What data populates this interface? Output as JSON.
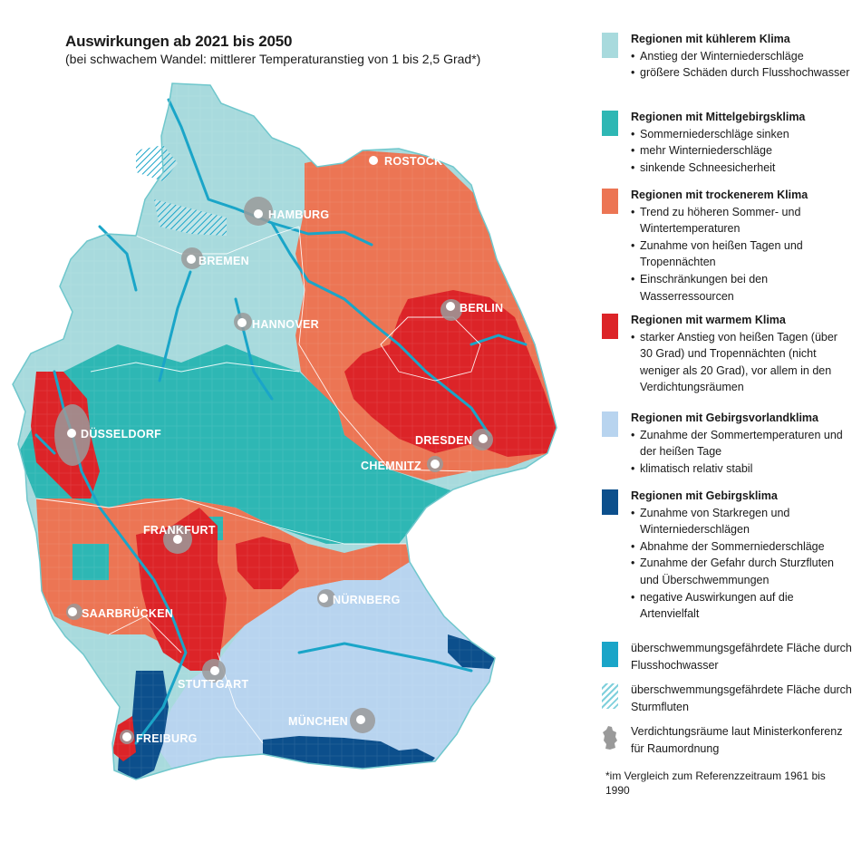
{
  "header": {
    "title": "Auswirkungen ab 2021 bis 2050",
    "subtitle": "(bei schwachem Wandel: mittlerer Temperaturanstieg von 1 bis 2,5 Grad*)"
  },
  "legend": [
    {
      "title": "Regionen mit kühlerem Klima",
      "color": "#a8dadd",
      "bullets": [
        "Anstieg der Winterniederschläge",
        "größere Schäden durch Flusshochwasser"
      ]
    },
    {
      "title": "Regionen mit Mittelgebirgsklima",
      "color": "#2eb7b4",
      "bullets": [
        "Sommerniederschläge sinken",
        "mehr Winterniederschläge",
        "sinkende Schneesicherheit"
      ]
    },
    {
      "title": "Regionen mit trockenerem Klima",
      "color": "#ec7554",
      "bullets": [
        "Trend zu höheren Sommer- und Wintertemperaturen",
        "Zunahme von heißen Tagen und Tropennächten",
        "Einschränkungen bei den Wasserressourcen"
      ]
    },
    {
      "title": "Regionen mit warmem Klima",
      "color": "#dc2428",
      "bullets": [
        "starker Anstieg von heißen Tagen (über 30 Grad) und Tropennächten (nicht weniger als 20 Grad), vor allem in den Verdichtungsräumen"
      ]
    },
    {
      "title": "Regionen mit Gebirgsvorlandklima",
      "color": "#b8d4ef",
      "bullets": [
        "Zunahme der Sommertemperaturen und der heißen Tage",
        "klimatisch relativ stabil"
      ]
    },
    {
      "title": "Regionen mit Gebirgsklima",
      "color": "#0c4f8c",
      "bullets": [
        "Zunahme von Starkregen und Winterniederschlägen",
        "Abnahme der Sommerniederschläge",
        "Zunahme der Gefahr durch Sturzfluten und Überschwemmungen",
        "negative Auswirkungen auf die Artenvielfalt"
      ]
    }
  ],
  "overlays": [
    {
      "text": "überschwemmungsgefährdete Fläche durch Flusshochwasser",
      "color": "#1aa5c8"
    },
    {
      "text": "überschwemmungsgefährdete Fläche durch Sturmfluten",
      "pattern": "hatched"
    },
    {
      "text": "Verdichtungsräume laut Ministerkonferenz für Raumordnung",
      "icon": "germany-silhouette-icon",
      "color": "#9a9a9a"
    }
  ],
  "footnote": "*im Vergleich zum Referenzzeitraum 1961 bis 1990",
  "cities": [
    "ROSTOCK",
    "HAMBURG",
    "BREMEN",
    "HANNOVER",
    "BERLIN",
    "DÜSSELDORF",
    "DRESDEN",
    "CHEMNITZ",
    "FRANKFURT",
    "NÜRNBERG",
    "SAARBRÜCKEN",
    "STUTTGART",
    "MÜNCHEN",
    "FREIBURG"
  ]
}
